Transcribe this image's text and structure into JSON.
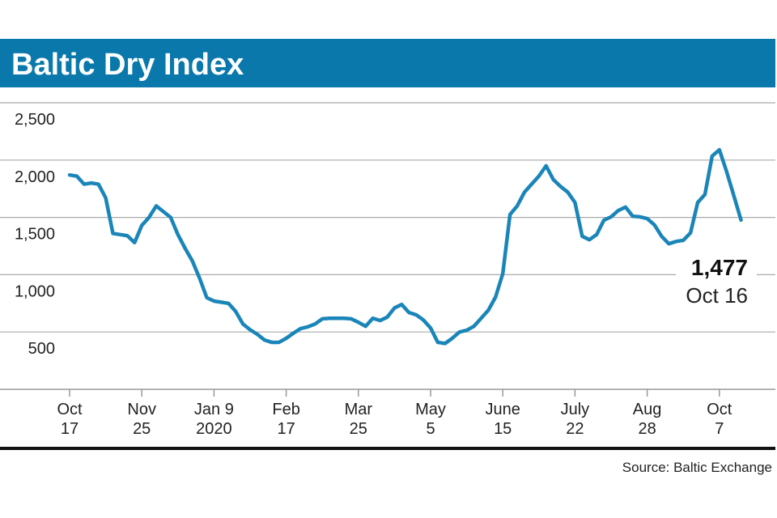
{
  "chart_data": {
    "type": "line",
    "title": "Baltic Dry Index",
    "categories": [
      [
        "Oct",
        "17"
      ],
      null,
      null,
      null,
      null,
      null,
      null,
      null,
      null,
      null,
      [
        "Nov",
        "25"
      ],
      null,
      null,
      null,
      null,
      null,
      null,
      null,
      null,
      null,
      [
        "Jan 9",
        "2020"
      ],
      null,
      null,
      null,
      null,
      null,
      null,
      null,
      null,
      null,
      [
        "Feb",
        "17"
      ],
      null,
      null,
      null,
      null,
      null,
      null,
      null,
      null,
      null,
      [
        "Mar",
        "25"
      ],
      null,
      null,
      null,
      null,
      null,
      null,
      null,
      null,
      null,
      [
        "May",
        "5"
      ],
      null,
      null,
      null,
      null,
      null,
      null,
      null,
      null,
      null,
      [
        "June",
        "15"
      ],
      null,
      null,
      null,
      null,
      null,
      null,
      null,
      null,
      null,
      [
        "July",
        "22"
      ],
      null,
      null,
      null,
      null,
      null,
      null,
      null,
      null,
      null,
      [
        "Aug",
        "28"
      ],
      null,
      null,
      null,
      null,
      null,
      null,
      null,
      null,
      null,
      [
        "Oct",
        "7"
      ],
      null,
      null,
      null
    ],
    "series": [
      {
        "name": "Baltic Dry Index",
        "color": "#1a85b8",
        "values": [
          1870,
          1860,
          1790,
          1800,
          1790,
          1670,
          1360,
          1350,
          1340,
          1280,
          1430,
          1500,
          1600,
          1550,
          1500,
          1350,
          1230,
          1120,
          970,
          800,
          770,
          760,
          750,
          680,
          570,
          520,
          480,
          430,
          410,
          410,
          445,
          490,
          530,
          545,
          570,
          615,
          620,
          620,
          620,
          615,
          585,
          550,
          620,
          600,
          630,
          710,
          740,
          670,
          650,
          605,
          535,
          410,
          400,
          445,
          500,
          515,
          550,
          620,
          690,
          805,
          1010,
          1525,
          1600,
          1720,
          1790,
          1860,
          1950,
          1830,
          1770,
          1720,
          1630,
          1335,
          1305,
          1350,
          1475,
          1505,
          1560,
          1590,
          1510,
          1505,
          1490,
          1435,
          1335,
          1270,
          1290,
          1300,
          1365,
          1630,
          1700,
          2035,
          2090,
          1900,
          1690,
          1477
        ]
      }
    ],
    "end_label": {
      "value_label": "1,477",
      "date": "Oct 16"
    },
    "ylim": [
      0,
      2500
    ],
    "yticks": [
      {
        "value": 500,
        "label": "500"
      },
      {
        "value": 1000,
        "label": "1,000"
      },
      {
        "value": 1500,
        "label": "1,500"
      },
      {
        "value": 2000,
        "label": "2,000"
      },
      {
        "value": 2500,
        "label": "2,500"
      }
    ],
    "grid": true,
    "source": "Source: Baltic Exchange"
  }
}
